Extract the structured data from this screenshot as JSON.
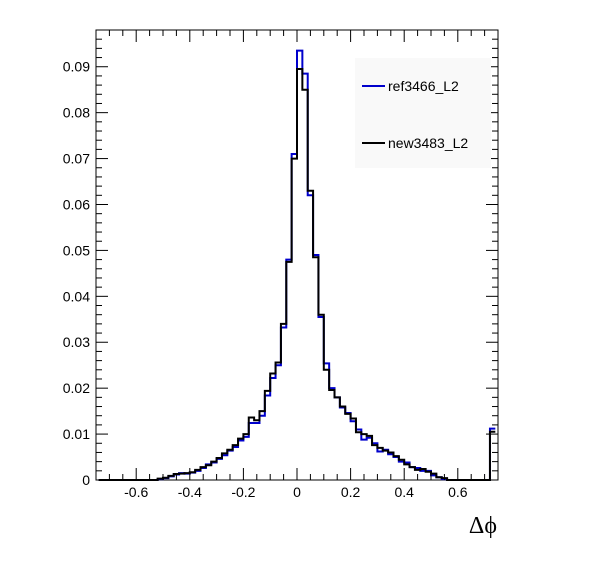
{
  "chart_data": {
    "type": "histogram-step",
    "xlabel": "Δϕ",
    "ylabel": "",
    "xlim": [
      -0.75,
      0.75
    ],
    "ylim": [
      0,
      0.098
    ],
    "bin_width": 0.02,
    "x_ticks": [
      -0.6,
      -0.4,
      -0.2,
      0,
      0.2,
      0.4,
      0.6
    ],
    "x_tick_labels": [
      "-0.6",
      "-0.4",
      "-0.2",
      "0",
      "0.2",
      "0.4",
      "0.6"
    ],
    "y_ticks": [
      0,
      0.01,
      0.02,
      0.03,
      0.04,
      0.05,
      0.06,
      0.07,
      0.08,
      0.09
    ],
    "y_tick_labels": [
      "0",
      "0.01",
      "0.02",
      "0.03",
      "0.04",
      "0.05",
      "0.06",
      "0.07",
      "0.08",
      "0.09"
    ],
    "legend": {
      "position": "top-right"
    },
    "series": [
      {
        "name": "ref3466_L2",
        "color": "#0000cc",
        "bin_edges_start": -0.74,
        "values": [
          0,
          0,
          0,
          0,
          0,
          0,
          0,
          0,
          0,
          0,
          0,
          0.0002,
          0.0004,
          0.0008,
          0.0012,
          0.0015,
          0.0014,
          0.0016,
          0.002,
          0.0026,
          0.0034,
          0.0038,
          0.0046,
          0.0054,
          0.0064,
          0.0072,
          0.0086,
          0.0094,
          0.0124,
          0.0124,
          0.014,
          0.0184,
          0.0222,
          0.025,
          0.0332,
          0.048,
          0.071,
          0.0935,
          0.0885,
          0.062,
          0.049,
          0.0355,
          0.0254,
          0.02,
          0.018,
          0.0158,
          0.0146,
          0.0128,
          0.011,
          0.0088,
          0.0092,
          0.008,
          0.0062,
          0.0066,
          0.0056,
          0.005,
          0.004,
          0.0038,
          0.0028,
          0.0026,
          0.002,
          0.002,
          0.001,
          0.0006,
          0.0002,
          0,
          0,
          0,
          0,
          0,
          0,
          0,
          0,
          0.0112
        ]
      },
      {
        "name": "new3483_L2",
        "color": "#000000",
        "bin_edges_start": -0.74,
        "values": [
          0,
          0,
          0,
          0,
          0,
          0,
          0,
          0,
          0,
          0,
          0,
          0.0003,
          0.0005,
          0.0009,
          0.0013,
          0.0014,
          0.0015,
          0.0017,
          0.0022,
          0.0028,
          0.0032,
          0.004,
          0.0048,
          0.0058,
          0.0066,
          0.0076,
          0.009,
          0.01,
          0.0136,
          0.013,
          0.015,
          0.0194,
          0.0232,
          0.0256,
          0.034,
          0.0475,
          0.07,
          0.0895,
          0.085,
          0.063,
          0.0485,
          0.036,
          0.024,
          0.0196,
          0.018,
          0.016,
          0.0144,
          0.0134,
          0.0104,
          0.01,
          0.0096,
          0.0076,
          0.007,
          0.0064,
          0.006,
          0.0052,
          0.0044,
          0.0034,
          0.0028,
          0.0022,
          0.0024,
          0.0018,
          0.0014,
          0.0006,
          0.0004,
          0,
          0,
          0,
          0,
          0,
          0,
          0,
          0,
          0.0105
        ]
      }
    ]
  }
}
